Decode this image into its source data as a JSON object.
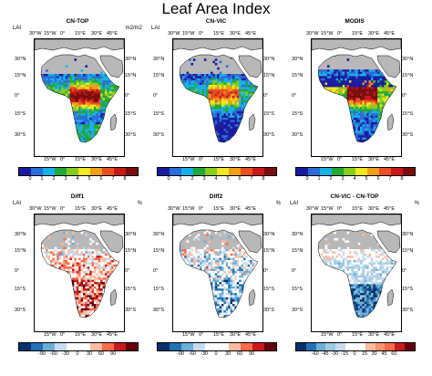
{
  "figure_title": "Leaf Area Index",
  "axis_labels": {
    "lon_top": [
      "30°W",
      "15°W",
      "0°",
      "15°E",
      "30°E",
      "45°E"
    ],
    "lon_bottom": [
      "15°W",
      "0°",
      "15°E",
      "30°E",
      "45°E"
    ],
    "lat": [
      "30°N",
      "15°N",
      "0°",
      "15°S",
      "30°S"
    ]
  },
  "panels": [
    {
      "name": "CN-TOP",
      "variable": "LAI",
      "unit": "m2/m2",
      "scale": "lai",
      "pattern": "cntop"
    },
    {
      "name": "CN-VIC",
      "variable": "LAI",
      "unit": "",
      "scale": "lai",
      "pattern": "cnvic"
    },
    {
      "name": "MODIS",
      "variable": "",
      "unit": "",
      "scale": "lai",
      "pattern": "modis"
    },
    {
      "name": "Diff1",
      "variable": "LAI",
      "unit": "%",
      "scale": "diff1",
      "pattern": "diff1"
    },
    {
      "name": "Diff2",
      "variable": "",
      "unit": "%",
      "scale": "diff2",
      "pattern": "diff2"
    },
    {
      "name": "CN-VIC - CN-TOP",
      "variable": "LAI",
      "unit": "%",
      "scale": "diff3",
      "pattern": "diff3"
    }
  ],
  "colorbars": {
    "lai": {
      "labels": [
        "0",
        "1",
        "2",
        "3",
        "4",
        "5",
        "6",
        "7",
        "8"
      ],
      "colors": [
        "#1a1aa0",
        "#2a6cd8",
        "#18b0e8",
        "#20a838",
        "#88cc20",
        "#f0e820",
        "#f0a018",
        "#e85020",
        "#c81818",
        "#7a0e0e"
      ]
    },
    "diff1": {
      "labels": [
        "-90",
        "-60",
        "-30",
        "0",
        "30",
        "60",
        "90"
      ],
      "colors": [
        "#08306b",
        "#2171b5",
        "#6baed6",
        "#c6dbef",
        "#ffffff",
        "#ffffff",
        "#fcbba1",
        "#fb6a4a",
        "#cb181d",
        "#67000d"
      ]
    },
    "diff2": {
      "labels": [
        "-90",
        "-60",
        "-30",
        "0",
        "30",
        "60",
        "90"
      ],
      "colors": [
        "#08306b",
        "#2171b5",
        "#6baed6",
        "#c6dbef",
        "#ffffff",
        "#ffffff",
        "#fcbba1",
        "#fb6a4a",
        "#cb181d",
        "#67000d"
      ]
    },
    "diff3": {
      "labels": [
        "-60",
        "-45",
        "-30",
        "-15",
        "0",
        "15",
        "30",
        "45",
        "60"
      ],
      "colors": [
        "#08306b",
        "#2171b5",
        "#6baed6",
        "#9ecae1",
        "#c6dbef",
        "#ffffff",
        "#ffffff",
        "#fcbba1",
        "#fc9272",
        "#fb6a4a",
        "#cb181d",
        "#67000d"
      ]
    }
  },
  "colors": {
    "land_gray": "#b8b8b8",
    "ocean": "#ffffff",
    "coast": "#000000"
  }
}
